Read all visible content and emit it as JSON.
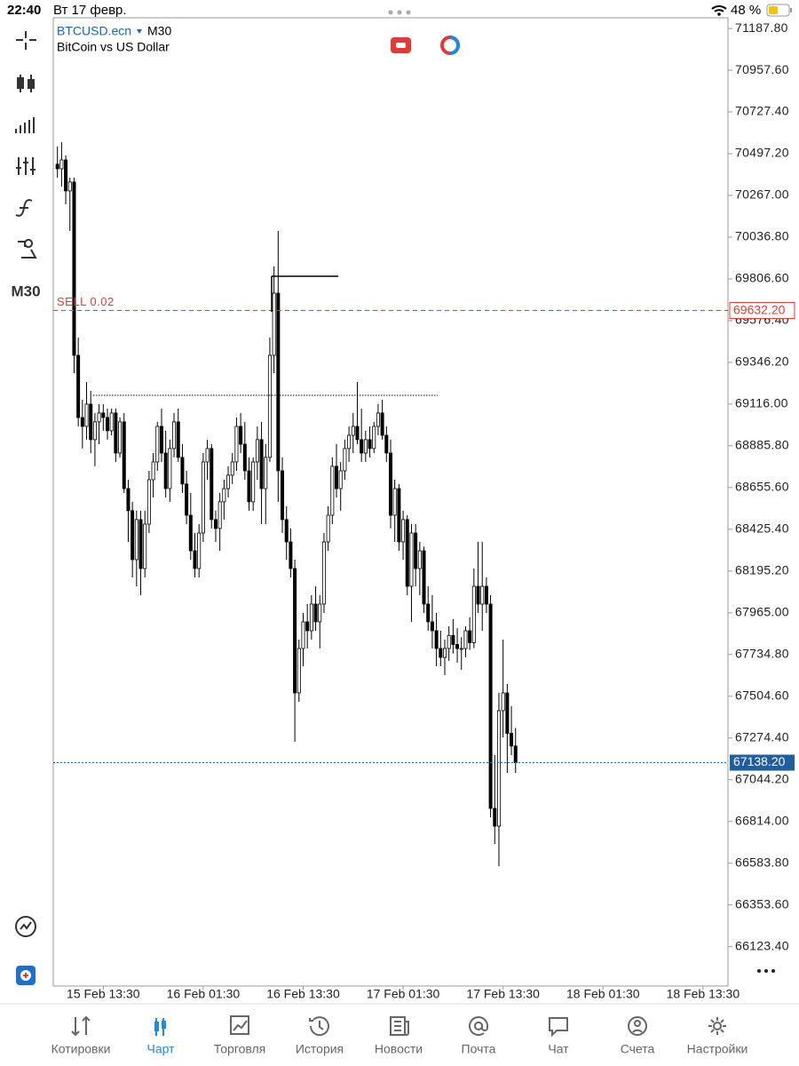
{
  "status_bar": {
    "time": "22:40",
    "date": "Вт 17 февр.",
    "battery": "48 %"
  },
  "header": {
    "symbol": "BTCUSD.ecn",
    "timeframe": "M30",
    "description": "BitCoin vs US Dollar"
  },
  "toolbar": {
    "timeframe": "M30"
  },
  "chart_data": {
    "type": "candlestick",
    "x": [
      "15 Feb 08:00",
      "15 Feb 08:30",
      "15 Feb 09:00",
      "15 Feb 09:30",
      "15 Feb 10:00",
      "15 Feb 10:30",
      "15 Feb 11:00",
      "15 Feb 11:30",
      "15 Feb 12:00",
      "15 Feb 12:30",
      "15 Feb 13:00",
      "15 Feb 13:30",
      "15 Feb 14:00",
      "15 Feb 14:30",
      "15 Feb 15:00",
      "15 Feb 15:30",
      "15 Feb 16:00",
      "15 Feb 16:30",
      "15 Feb 17:00",
      "15 Feb 17:30",
      "15 Feb 18:00",
      "15 Feb 18:30",
      "15 Feb 19:00",
      "15 Feb 19:30",
      "15 Feb 20:00",
      "15 Feb 20:30",
      "15 Feb 21:00",
      "15 Feb 21:30",
      "15 Feb 22:00",
      "15 Feb 22:30",
      "15 Feb 23:00",
      "15 Feb 23:30",
      "16 Feb 00:00",
      "16 Feb 00:30",
      "16 Feb 01:00",
      "16 Feb 01:30",
      "16 Feb 02:00",
      "16 Feb 02:30",
      "16 Feb 03:00",
      "16 Feb 03:30",
      "16 Feb 04:00",
      "16 Feb 04:30",
      "16 Feb 05:00",
      "16 Feb 05:30",
      "16 Feb 06:00",
      "16 Feb 06:30",
      "16 Feb 07:00",
      "16 Feb 07:30",
      "16 Feb 08:00",
      "16 Feb 08:30",
      "16 Feb 09:00",
      "16 Feb 09:30",
      "16 Feb 10:00",
      "16 Feb 10:30",
      "16 Feb 11:00",
      "16 Feb 11:30",
      "16 Feb 12:00",
      "16 Feb 12:30",
      "16 Feb 13:00",
      "16 Feb 13:30",
      "16 Feb 14:00",
      "16 Feb 14:30",
      "16 Feb 15:00",
      "16 Feb 15:30",
      "16 Feb 16:00",
      "16 Feb 16:30",
      "16 Feb 17:00",
      "16 Feb 17:30",
      "16 Feb 18:00",
      "16 Feb 18:30",
      "16 Feb 19:00",
      "16 Feb 19:30",
      "16 Feb 20:00",
      "16 Feb 20:30",
      "16 Feb 21:00",
      "16 Feb 21:30",
      "16 Feb 22:00",
      "16 Feb 22:30",
      "16 Feb 23:00",
      "16 Feb 23:30",
      "17 Feb 00:00",
      "17 Feb 00:30",
      "17 Feb 01:00",
      "17 Feb 01:30",
      "17 Feb 02:00",
      "17 Feb 02:30",
      "17 Feb 03:00",
      "17 Feb 03:30",
      "17 Feb 04:00",
      "17 Feb 04:30",
      "17 Feb 05:00",
      "17 Feb 05:30",
      "17 Feb 06:00",
      "17 Feb 06:30",
      "17 Feb 07:00",
      "17 Feb 07:30",
      "17 Feb 08:00",
      "17 Feb 08:30",
      "17 Feb 09:00",
      "17 Feb 09:30",
      "17 Feb 10:00",
      "17 Feb 10:30",
      "17 Feb 11:00",
      "17 Feb 11:30",
      "17 Feb 12:00",
      "17 Feb 12:30",
      "17 Feb 13:00",
      "17 Feb 13:30",
      "17 Feb 14:00",
      "17 Feb 14:30",
      "17 Feb 15:00"
    ],
    "open": [
      70439,
      70414,
      70463,
      70292,
      70341,
      69385,
      69042,
      68993,
      69116,
      68920,
      69018,
      69067,
      69042,
      68969,
      69067,
      68846,
      69018,
      68650,
      68528,
      68258,
      68479,
      68209,
      68454,
      68699,
      68797,
      68993,
      68846,
      68650,
      68871,
      69018,
      68822,
      68675,
      68503,
      68307,
      68209,
      68405,
      68797,
      68871,
      68479,
      68430,
      68577,
      68650,
      68724,
      68797,
      68993,
      68895,
      68748,
      68577,
      68797,
      68920,
      68650,
      68822,
      69385,
      69728,
      68748,
      68479,
      68356,
      68209,
      67523,
      67768,
      67915,
      67866,
      68013,
      67915,
      68013,
      68356,
      68503,
      68773,
      68650,
      68748,
      68871,
      68944,
      68993,
      68920,
      68846,
      68920,
      68871,
      68993,
      69067,
      68944,
      68846,
      68503,
      68650,
      68356,
      68479,
      68111,
      68405,
      68209,
      68307,
      68013,
      67915,
      67866,
      67768,
      67719,
      67768,
      67840,
      67790,
      67768,
      67768,
      67866,
      67800,
      68111,
      68013,
      68111,
      68013,
      66886,
      66788,
      67425,
      67523,
      67300,
      67230
    ],
    "high": [
      70537,
      70561,
      70488,
      70365,
      70365,
      69483,
      69140,
      69238,
      69189,
      69067,
      69116,
      69116,
      69091,
      69091,
      69091,
      69042,
      69067,
      68699,
      68577,
      68528,
      68528,
      68528,
      68748,
      68846,
      69018,
      69091,
      68969,
      68920,
      69067,
      69091,
      68895,
      68748,
      68626,
      68405,
      68454,
      68846,
      68920,
      68895,
      68528,
      68626,
      68699,
      68773,
      68846,
      69042,
      69067,
      69018,
      68822,
      68822,
      68993,
      69018,
      68895,
      69483,
      69875,
      70071,
      68822,
      68552,
      68430,
      68258,
      67817,
      67964,
      68013,
      68062,
      68111,
      68062,
      68405,
      68552,
      68822,
      68895,
      68797,
      68920,
      68993,
      69067,
      69238,
      69091,
      68969,
      68993,
      69018,
      69116,
      69140,
      68993,
      68920,
      68699,
      68675,
      68528,
      68503,
      68454,
      68454,
      68356,
      68330,
      68111,
      68062,
      67964,
      67866,
      67817,
      67890,
      67930,
      67880,
      67830,
      67890,
      67940,
      68209,
      68356,
      68356,
      68160,
      68062,
      67180,
      67523,
      67817,
      67572,
      67450,
      67330
    ],
    "low": [
      70365,
      70316,
      70218,
      70071,
      69287,
      68993,
      68871,
      68920,
      68846,
      68773,
      68895,
      68969,
      68920,
      68944,
      68797,
      68822,
      68626,
      68356,
      68160,
      68111,
      68062,
      68160,
      68405,
      68601,
      68748,
      68797,
      68601,
      68577,
      68822,
      68797,
      68626,
      68454,
      68258,
      68160,
      68160,
      68356,
      68699,
      68430,
      68356,
      68307,
      68479,
      68601,
      68675,
      68748,
      68846,
      68699,
      68528,
      68528,
      68699,
      68454,
      68454,
      68797,
      69287,
      68577,
      68405,
      68258,
      68160,
      67254,
      67474,
      67670,
      67768,
      67817,
      67866,
      67768,
      67964,
      68307,
      68454,
      68601,
      68528,
      68699,
      68797,
      68846,
      68895,
      68797,
      68797,
      68822,
      68846,
      68944,
      68920,
      68797,
      68430,
      68356,
      68307,
      68258,
      68062,
      67915,
      68111,
      68062,
      67964,
      67866,
      67768,
      67670,
      67670,
      67621,
      67700,
      67740,
      67690,
      67650,
      67719,
      67760,
      67770,
      67964,
      67866,
      67964,
      66837,
      66690,
      66567,
      67278,
      67082,
      67180,
      67082
    ],
    "close": [
      70414,
      70463,
      70292,
      70341,
      69385,
      69042,
      68993,
      69116,
      68920,
      69018,
      69067,
      69042,
      68969,
      69067,
      68846,
      69018,
      68650,
      68528,
      68258,
      68479,
      68209,
      68454,
      68699,
      68797,
      68993,
      68846,
      68650,
      68871,
      69018,
      68822,
      68675,
      68503,
      68307,
      68209,
      68405,
      68797,
      68871,
      68479,
      68430,
      68577,
      68650,
      68724,
      68797,
      68993,
      68895,
      68748,
      68577,
      68797,
      68920,
      68650,
      68822,
      69385,
      69728,
      68748,
      68479,
      68356,
      68209,
      67523,
      67768,
      67915,
      67866,
      68013,
      67915,
      68013,
      68356,
      68503,
      68773,
      68650,
      68748,
      68871,
      68944,
      68993,
      68920,
      68846,
      68920,
      68871,
      68993,
      69067,
      68944,
      68846,
      68503,
      68650,
      68356,
      68479,
      68111,
      68405,
      68209,
      68307,
      68013,
      67915,
      67866,
      67768,
      67719,
      67768,
      67840,
      67790,
      67768,
      67768,
      67866,
      67800,
      68111,
      68013,
      68111,
      68013,
      66886,
      66788,
      67425,
      67523,
      67300,
      67230,
      67138.2
    ],
    "up_color": "#ffffff",
    "down_color": "#000000",
    "xlim": [
      "15 Feb 07:30",
      "18 Feb 16:30"
    ],
    "xticks": [
      "15 Feb 13:30",
      "16 Feb 01:30",
      "16 Feb 13:30",
      "17 Feb 01:30",
      "17 Feb 13:30",
      "18 Feb 01:30",
      "18 Feb 13:30"
    ],
    "ylim": [
      65906,
      71247
    ],
    "yticks": [
      {
        "value": 71187.8,
        "label": "71187.80"
      },
      {
        "value": 70957.6,
        "label": "70957.60"
      },
      {
        "value": 70727.4,
        "label": "70727.40"
      },
      {
        "value": 70497.2,
        "label": "70497.20"
      },
      {
        "value": 70267,
        "label": "70267.00"
      },
      {
        "value": 70036.8,
        "label": "70036.80"
      },
      {
        "value": 69806.6,
        "label": "69806.60"
      },
      {
        "value": 69576.4,
        "label": "69576.40"
      },
      {
        "value": 69346.2,
        "label": "69346.20"
      },
      {
        "value": 69116,
        "label": "69116.00"
      },
      {
        "value": 68885.8,
        "label": "68885.80"
      },
      {
        "value": 68655.6,
        "label": "68655.60"
      },
      {
        "value": 68425.4,
        "label": "68425.40"
      },
      {
        "value": 68195.2,
        "label": "68195.20"
      },
      {
        "value": 67965,
        "label": "67965.00"
      },
      {
        "value": 67734.8,
        "label": "67734.80"
      },
      {
        "value": 67504.6,
        "label": "67504.60"
      },
      {
        "value": 67274.4,
        "label": "67274.40"
      },
      {
        "value": 67044.2,
        "label": "67044.20"
      },
      {
        "value": 66814,
        "label": "66814.00"
      },
      {
        "value": 66583.8,
        "label": "66583.80"
      },
      {
        "value": 66353.6,
        "label": "66353.60"
      },
      {
        "value": 66123.4,
        "label": "66123.40"
      }
    ],
    "sell_line": {
      "label": "SELL 0.02",
      "value": 69632.2,
      "value_label": "69632.20",
      "color": "#e53935"
    },
    "current_price": {
      "value": 67138.2,
      "label": "67138.20",
      "color": "#1f5fa0"
    }
  },
  "nav": {
    "items": [
      "Котировки",
      "Чарт",
      "Торговля",
      "История",
      "Новости",
      "Почта",
      "Чат",
      "Счета",
      "Настройки"
    ],
    "active": 1
  }
}
